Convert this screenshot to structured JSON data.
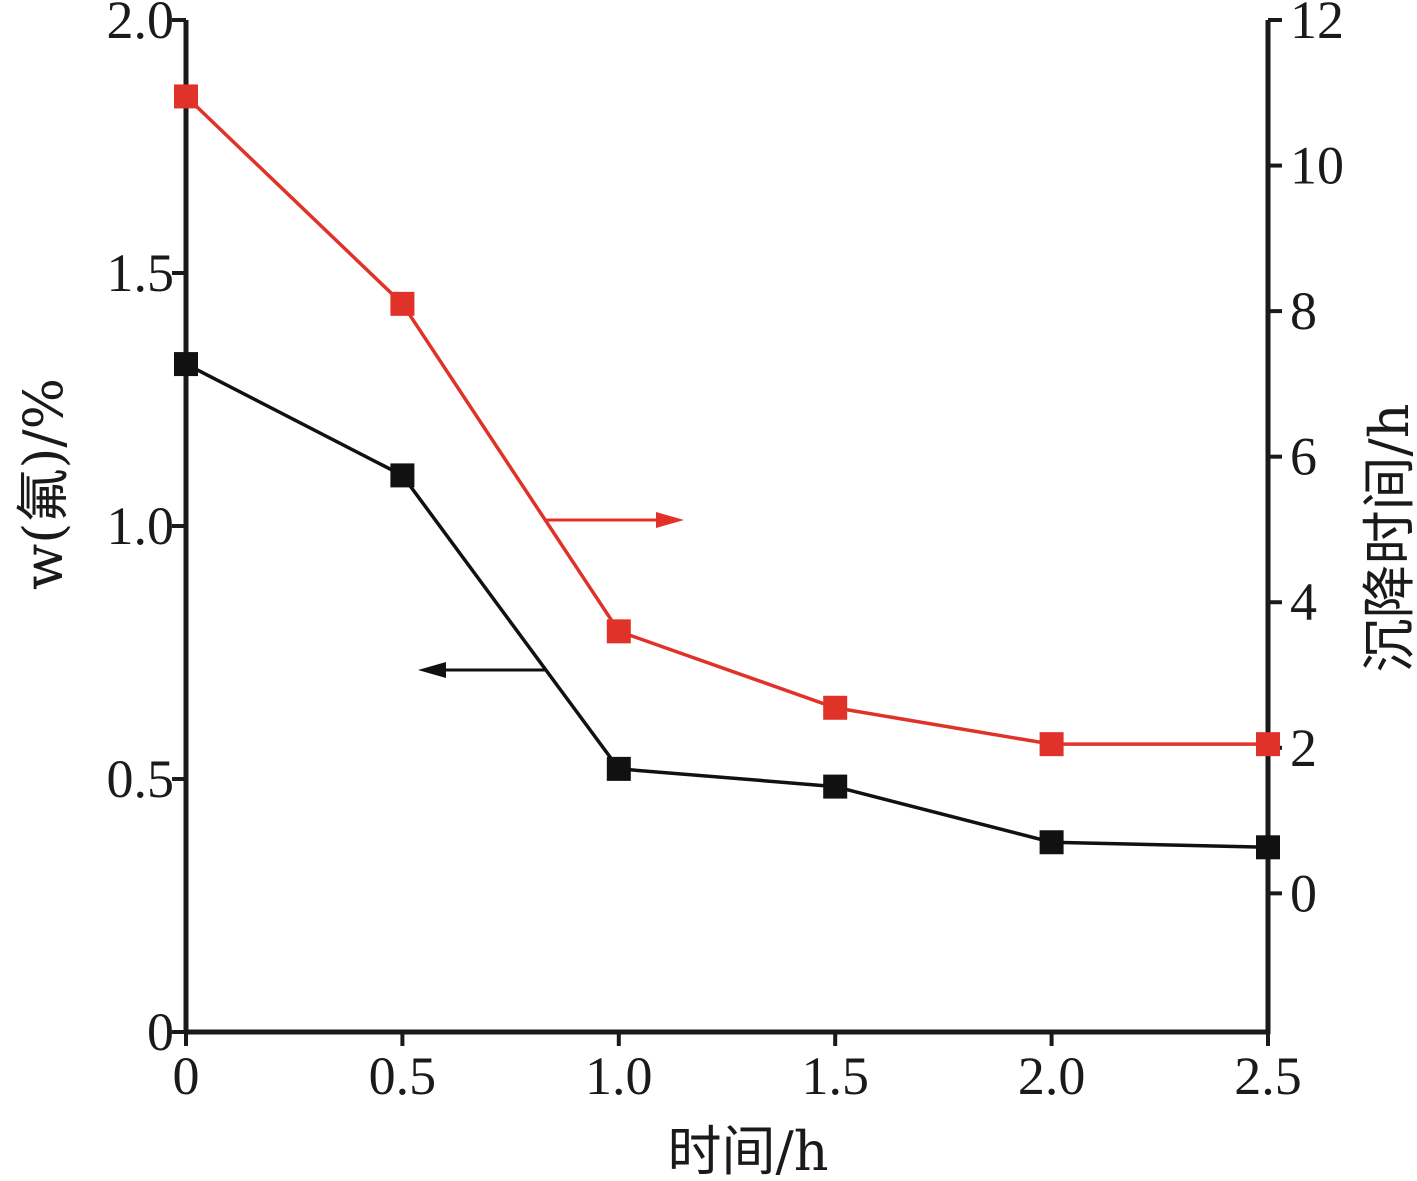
{
  "chart_data": {
    "type": "line",
    "x": [
      0,
      0.5,
      1.0,
      1.5,
      2.0,
      2.5
    ],
    "xlabel": "时间/h",
    "ylabel_left": "w(氟)/%",
    "ylabel_right": "沉降时间/h",
    "xlim": [
      0,
      2.5
    ],
    "ylim_left": [
      0,
      2.0
    ],
    "ylim_right": [
      -1.905,
      12
    ],
    "x_ticks": [
      "0",
      "0.5",
      "1.0",
      "1.5",
      "2.0",
      "2.5"
    ],
    "y_left_ticks": [
      {
        "value": 0,
        "label": "0"
      },
      {
        "value": 0.5,
        "label": "0.5"
      },
      {
        "value": 1.0,
        "label": "1.0"
      },
      {
        "value": 1.5,
        "label": "1.5"
      },
      {
        "value": 2.0,
        "label": "2.0"
      }
    ],
    "y_right_ticks": [
      {
        "value": 0,
        "label": "0"
      },
      {
        "value": 2,
        "label": "2"
      },
      {
        "value": 4,
        "label": "4"
      },
      {
        "value": 6,
        "label": "6"
      },
      {
        "value": 8,
        "label": "8"
      },
      {
        "value": 10,
        "label": "10"
      },
      {
        "value": 12,
        "label": "12"
      }
    ],
    "grid": false,
    "series": [
      {
        "axis": "left",
        "color": "#111111",
        "marker": "square",
        "values": [
          1.32,
          1.1,
          0.52,
          0.485,
          0.375,
          0.365
        ]
      },
      {
        "axis": "right",
        "color": "#e03228",
        "marker": "square",
        "values": [
          10.95,
          8.1,
          3.6,
          2.55,
          2.05,
          2.05
        ]
      }
    ],
    "annotations": [
      {
        "type": "arrow",
        "direction": "left",
        "axis_ref": "left",
        "color": "#111111"
      },
      {
        "type": "arrow",
        "direction": "right",
        "axis_ref": "right",
        "color": "#e03228"
      }
    ]
  }
}
